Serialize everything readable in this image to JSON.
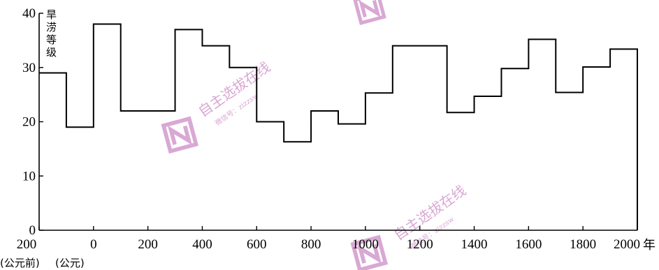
{
  "chart_data": {
    "type": "line",
    "step": true,
    "title": "",
    "ylabel": "旱涝等级",
    "xlabel": "年",
    "xlim": [
      -200,
      2000
    ],
    "ylim": [
      0,
      40
    ],
    "x_ticks": [
      -200,
      0,
      200,
      400,
      600,
      800,
      1000,
      1200,
      1400,
      1600,
      1800,
      2000
    ],
    "x_tick_labels": [
      "200",
      "0",
      "200",
      "400",
      "600",
      "800",
      "1000",
      "1200",
      "1400",
      "1600",
      "1800",
      "2000"
    ],
    "y_ticks": [
      0,
      10,
      20,
      30,
      40
    ],
    "x_unit": "年",
    "era_labels": [
      "(公元前)",
      "(公元)"
    ],
    "grid": false,
    "series": [
      {
        "segments": [
          {
            "x_start": -200,
            "x_end": -100,
            "value": 29
          },
          {
            "x_start": -100,
            "x_end": 0,
            "value": 19
          },
          {
            "x_start": 0,
            "x_end": 100,
            "value": 38
          },
          {
            "x_start": 100,
            "x_end": 300,
            "value": 22
          },
          {
            "x_start": 300,
            "x_end": 400,
            "value": 37
          },
          {
            "x_start": 400,
            "x_end": 500,
            "value": 34
          },
          {
            "x_start": 500,
            "x_end": 600,
            "value": 30
          },
          {
            "x_start": 600,
            "x_end": 700,
            "value": 20
          },
          {
            "x_start": 700,
            "x_end": 800,
            "value": 16.3
          },
          {
            "x_start": 800,
            "x_end": 900,
            "value": 22
          },
          {
            "x_start": 900,
            "x_end": 1000,
            "value": 19.6
          },
          {
            "x_start": 1000,
            "x_end": 1100,
            "value": 25.3
          },
          {
            "x_start": 1100,
            "x_end": 1300,
            "value": 34
          },
          {
            "x_start": 1300,
            "x_end": 1400,
            "value": 21.7
          },
          {
            "x_start": 1400,
            "x_end": 1500,
            "value": 24.7
          },
          {
            "x_start": 1500,
            "x_end": 1600,
            "value": 29.8
          },
          {
            "x_start": 1600,
            "x_end": 1700,
            "value": 35.2
          },
          {
            "x_start": 1700,
            "x_end": 1800,
            "value": 25.4
          },
          {
            "x_start": 1800,
            "x_end": 1900,
            "value": 30.1
          },
          {
            "x_start": 1900,
            "x_end": 2000,
            "value": 33.4
          }
        ]
      }
    ]
  },
  "watermarks": {
    "brand_text": "自主选拔在线",
    "wechat_text": "微信号：zizzsw",
    "color": "#d9a8d4"
  }
}
